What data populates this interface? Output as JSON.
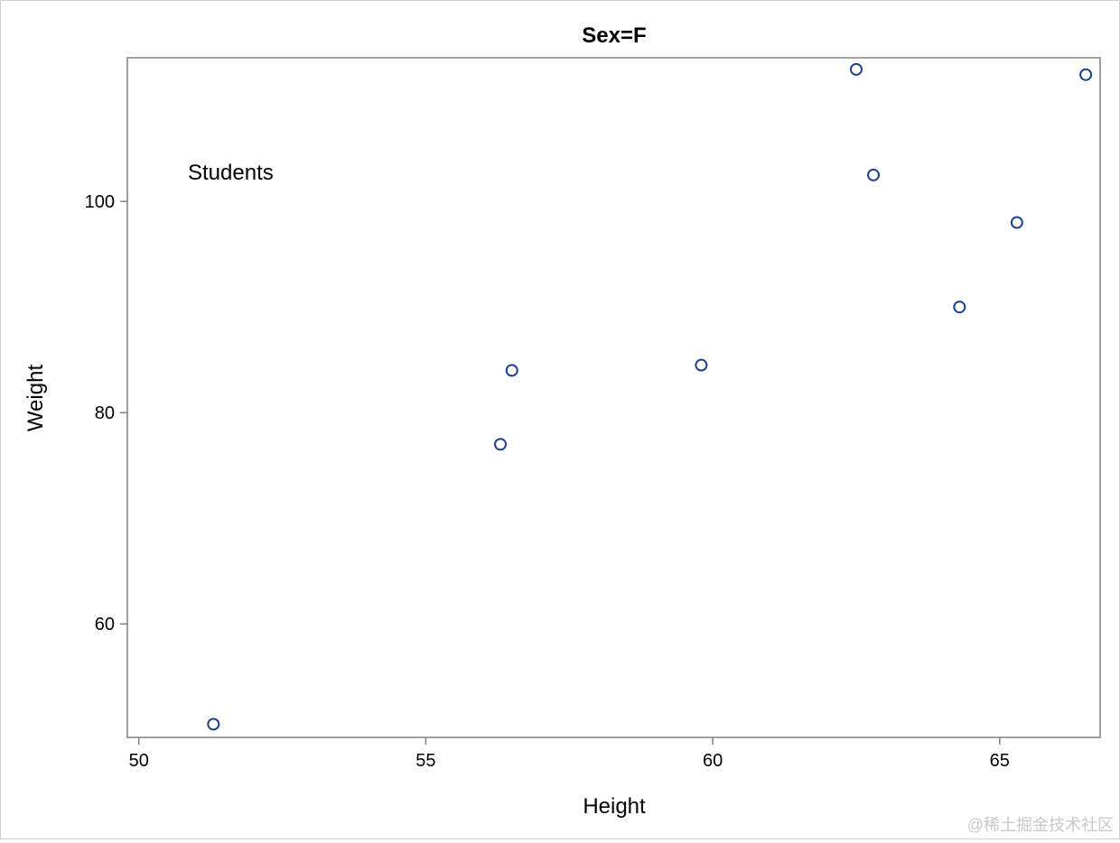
{
  "chart_data": {
    "type": "scatter",
    "title": "Sex=F",
    "xlabel": "Height",
    "ylabel": "Weight",
    "xlim": [
      49.8,
      66.75
    ],
    "ylim": [
      49.25,
      113.6
    ],
    "xticks": [
      50,
      55,
      60,
      65
    ],
    "yticks": [
      60,
      80,
      100
    ],
    "grid": false,
    "annotation": "Students",
    "marker_color": "#1f3f8f",
    "series": [
      {
        "points": [
          {
            "x": 51.3,
            "y": 50.5
          },
          {
            "x": 56.3,
            "y": 77.0
          },
          {
            "x": 56.5,
            "y": 84.0
          },
          {
            "x": 59.8,
            "y": 84.5
          },
          {
            "x": 62.5,
            "y": 112.5
          },
          {
            "x": 62.8,
            "y": 102.5
          },
          {
            "x": 64.3,
            "y": 90.0
          },
          {
            "x": 65.3,
            "y": 98.0
          },
          {
            "x": 66.5,
            "y": 112.0
          }
        ]
      }
    ]
  },
  "watermark": "@稀土掘金技术社区"
}
